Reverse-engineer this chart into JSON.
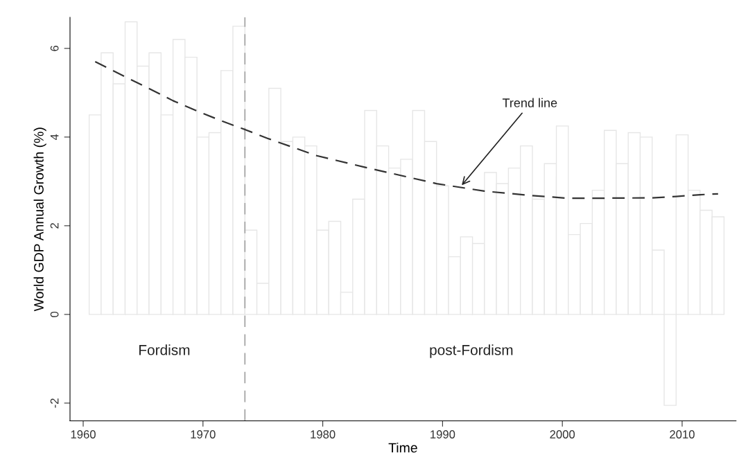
{
  "chart_data": {
    "type": "bar",
    "xlabel": "Time",
    "ylabel": "World GDP Annual Growth (%)",
    "x": [
      1961,
      1962,
      1963,
      1964,
      1965,
      1966,
      1967,
      1968,
      1969,
      1970,
      1971,
      1972,
      1973,
      1974,
      1975,
      1976,
      1977,
      1978,
      1979,
      1980,
      1981,
      1982,
      1983,
      1984,
      1985,
      1986,
      1987,
      1988,
      1989,
      1990,
      1991,
      1992,
      1993,
      1994,
      1995,
      1996,
      1997,
      1998,
      1999,
      2000,
      2001,
      2002,
      2003,
      2004,
      2005,
      2006,
      2007,
      2008,
      2009,
      2010,
      2011,
      2012,
      2013
    ],
    "series": [
      {
        "color": "#e6e6e6",
        "values": [
          4.5,
          5.9,
          5.2,
          6.6,
          5.6,
          5.9,
          4.5,
          6.2,
          5.8,
          4.0,
          4.1,
          5.5,
          6.5,
          1.9,
          0.7,
          5.1,
          3.9,
          4.0,
          3.8,
          1.9,
          2.1,
          0.5,
          2.6,
          4.6,
          3.8,
          3.3,
          3.5,
          4.6,
          3.9,
          2.9,
          1.3,
          1.75,
          1.6,
          3.2,
          2.95,
          3.3,
          3.8,
          2.6,
          3.4,
          4.25,
          1.8,
          2.05,
          2.8,
          4.15,
          3.4,
          4.1,
          4.0,
          1.45,
          -2.05,
          4.05,
          2.8,
          2.35,
          2.2
        ]
      },
      {
        "type": "line",
        "color": "#333333",
        "line_style": "dashed",
        "x": [
          1961,
          1963.5,
          1966.5,
          1967.5,
          1969.5,
          1971.5,
          1973.5,
          1975.5,
          1979.5,
          1983.5,
          1989.5,
          1993.5,
          1997.5,
          2000.5,
          2002.5,
          2007.5,
          2009.5,
          2011.5,
          2013
        ],
        "values": [
          5.7,
          5.36,
          4.96,
          4.82,
          4.59,
          4.37,
          4.17,
          3.96,
          3.58,
          3.32,
          2.95,
          2.78,
          2.68,
          2.62,
          2.62,
          2.63,
          2.66,
          2.7,
          2.72
        ]
      }
    ],
    "xlim": [
      1958.9,
      2014.5
    ],
    "xticks": [
      1960,
      1970,
      1980,
      1990,
      2000,
      2010
    ],
    "ylim": [
      -2.4,
      6.7
    ],
    "yticks": [
      -2,
      0,
      2,
      4,
      6
    ],
    "ref_lines": [
      {
        "axis": "x",
        "value": 1973.5,
        "color": "#b0b0b0",
        "line_style": "dashed"
      }
    ],
    "annotations": [
      "Fordism",
      "post-Fordism",
      {
        "text": "Trend line",
        "x": 1991.5,
        "y": 2.88
      }
    ],
    "grid": false,
    "legend": false
  }
}
